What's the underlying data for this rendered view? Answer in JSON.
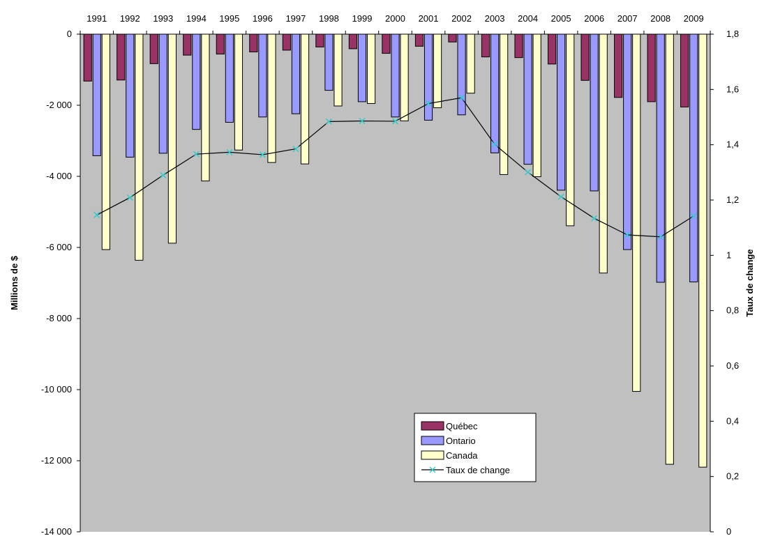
{
  "chart_data": {
    "type": "bar",
    "categories": [
      "1991",
      "1992",
      "1993",
      "1994",
      "1995",
      "1996",
      "1997",
      "1998",
      "1999",
      "2000",
      "2001",
      "2002",
      "2003",
      "2004",
      "2005",
      "2006",
      "2007",
      "2008",
      "2009"
    ],
    "series": [
      {
        "name": "Québec",
        "color": "#993366",
        "values": [
          -1320,
          -1290,
          -830,
          -590,
          -560,
          -500,
          -450,
          -360,
          -410,
          -540,
          -340,
          -220,
          -640,
          -660,
          -840,
          -1300,
          -1780,
          -1900,
          -2050
        ]
      },
      {
        "name": "Ontario",
        "color": "#9999ff",
        "values": [
          -3420,
          -3460,
          -3350,
          -2680,
          -2480,
          -2330,
          -2240,
          -1580,
          -1900,
          -2330,
          -2420,
          -2270,
          -3340,
          -3660,
          -4390,
          -4410,
          -6060,
          -6980,
          -6970
        ]
      },
      {
        "name": "Canada",
        "color": "#ffffcc",
        "values": [
          -6060,
          -6360,
          -5880,
          -4130,
          -3260,
          -3610,
          -3650,
          -2020,
          -1950,
          -2440,
          -2070,
          -1660,
          -3950,
          -4010,
          -5390,
          -6720,
          -10050,
          -12100,
          -12180
        ]
      }
    ],
    "line_series": {
      "name": "Taux de change",
      "color": "#33cccc",
      "values": [
        1.146,
        1.209,
        1.29,
        1.366,
        1.373,
        1.364,
        1.385,
        1.484,
        1.486,
        1.485,
        1.549,
        1.57,
        1.401,
        1.301,
        1.212,
        1.134,
        1.074,
        1.067,
        1.142
      ]
    },
    "ylabel": "Millions de $",
    "y2label": "Taux de change",
    "ylim": [
      -14000,
      0
    ],
    "y2lim": [
      0,
      1.8
    ],
    "yticks": [
      "0",
      "-2 000",
      "-4 000",
      "-6 000",
      "-8 000",
      "-10 000",
      "-12 000",
      "-14 000"
    ],
    "y2ticks": [
      "1,8",
      "1,6",
      "1,4",
      "1,2",
      "1",
      "0,8",
      "0,6",
      "0,4",
      "0,2",
      "0"
    ],
    "legend_position": "bottom-center",
    "background": "#c0c0c0",
    "grid": false
  }
}
